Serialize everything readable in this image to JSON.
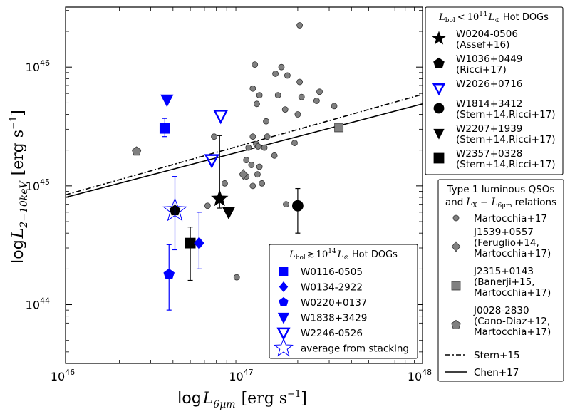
{
  "chart_data": {
    "type": "scatter",
    "x_scale": "log",
    "y_scale": "log",
    "xlim": [
      1e+46,
      1e+48
    ],
    "ylim": [
      3.2e+43,
      3.2e+46
    ],
    "x_ticks": [
      {
        "value": 1e+46,
        "label": "10",
        "exp": "46"
      },
      {
        "value": 1e+47,
        "label": "10",
        "exp": "47"
      },
      {
        "value": 1e+48,
        "label": "10",
        "exp": "48"
      }
    ],
    "y_ticks": [
      {
        "value": 1e+44,
        "label": "10",
        "exp": "44"
      },
      {
        "value": 1e+45,
        "label": "10",
        "exp": "45"
      },
      {
        "value": 1e+46,
        "label": "10",
        "exp": "46"
      }
    ],
    "xlabel": {
      "main": "log",
      "sym": "L",
      "sub": "6μm",
      "unit": "[erg s",
      "exp": "−1",
      "close": "]"
    },
    "ylabel": {
      "main": "log",
      "sym": "L",
      "sub": "2−10keV",
      "unit": "[erg s",
      "exp": "−1",
      "close": "]"
    },
    "lines": [
      {
        "name": "Stern+15",
        "style": "dashdot",
        "x": [
          1e+46,
          1e+48
        ],
        "y": [
          8.4e+44,
          5.9e+45
        ]
      },
      {
        "name": "Chen+17",
        "style": "solid",
        "x": [
          1e+46,
          1e+48
        ],
        "y": [
          8e+44,
          4.9e+45
        ]
      }
    ],
    "martocchia": {
      "name": "Martocchia+17",
      "color": "#808080",
      "points": [
        [
          2.05e+47,
          2.25e+46
        ],
        [
          1.15e+47,
          1.05e+46
        ],
        [
          1.62e+47,
          1e+46
        ],
        [
          1.5e+47,
          8.8e+45
        ],
        [
          1.75e+47,
          8.5e+45
        ],
        [
          2.05e+47,
          7.5e+45
        ],
        [
          2.65e+47,
          6.2e+45
        ],
        [
          1.12e+47,
          6.6e+45
        ],
        [
          1.22e+47,
          5.8e+45
        ],
        [
          1.55e+47,
          5.8e+45
        ],
        [
          2.1e+47,
          5.6e+45
        ],
        [
          2.55e+47,
          5.2e+45
        ],
        [
          1.18e+47,
          4.9e+45
        ],
        [
          3.2e+47,
          4.7e+45
        ],
        [
          1.7e+47,
          4.4e+45
        ],
        [
          2e+47,
          4e+45
        ],
        [
          1.33e+47,
          3.5e+45
        ],
        [
          6.8e+46,
          2.6e+45
        ],
        [
          1.12e+47,
          2.6e+45
        ],
        [
          1.35e+47,
          2.6e+45
        ],
        [
          1.17e+47,
          2.25e+45
        ],
        [
          1.06e+47,
          2.1e+45
        ],
        [
          1.2e+47,
          2.15e+45
        ],
        [
          1.3e+47,
          2.1e+45
        ],
        [
          1.92e+47,
          2.3e+45
        ],
        [
          1.48e+47,
          1.8e+45
        ],
        [
          1.03e+47,
          1.65e+45
        ],
        [
          1.1e+47,
          1.5e+45
        ],
        [
          1.22e+47,
          1.45e+45
        ],
        [
          1.19e+47,
          1.25e+45
        ],
        [
          1.03e+47,
          1.2e+45
        ],
        [
          1.26e+47,
          1.05e+45
        ],
        [
          7.8e+46,
          1.05e+45
        ],
        [
          1.12e+47,
          1e+45
        ],
        [
          6.25e+46,
          6.8e+44
        ],
        [
          1.72e+47,
          7e+44
        ],
        [
          9.1e+46,
          1.7e+44
        ]
      ]
    },
    "low_hot_dogs": [
      {
        "name": "W0204-0506",
        "ref": "(Assef+16)",
        "marker": "star",
        "color": "#000000",
        "filled": true,
        "x": 7.3e+46,
        "y": 7.8e+44,
        "err_low": 6.5e+44,
        "err_high": 2.65e+45
      },
      {
        "name": "W1036+0449",
        "ref": "(Ricci+17)",
        "marker": "pentagon",
        "color": "#000000",
        "filled": true,
        "x": 4.1e+46,
        "y": 6.2e+44
      },
      {
        "name": "W2026+0716",
        "ref": "",
        "marker": "tri_down",
        "color": "#0000ff",
        "filled": false,
        "x": 6.6e+46,
        "y": 1.65e+45
      },
      {
        "name": "W1814+3412",
        "ref": "(Stern+14,Ricci+17)",
        "marker": "circle",
        "color": "#000000",
        "filled": true,
        "x": 2e+47,
        "y": 6.8e+44,
        "err_low": 4e+44,
        "err_high": 9.5e+44
      },
      {
        "name": "W2207+1939",
        "ref": "(Stern+14,Ricci+17)",
        "marker": "tri_down",
        "color": "#000000",
        "filled": true,
        "x": 8.2e+46,
        "y": 6e+44
      },
      {
        "name": "W2357+0328",
        "ref": "(Stern+14,Ricci+17)",
        "marker": "square",
        "color": "#000000",
        "filled": true,
        "x": 5e+46,
        "y": 3.3e+44,
        "err_low": 1.6e+44,
        "err_high": 4.5e+44
      }
    ],
    "high_hot_dogs": [
      {
        "name": "W0116-0505",
        "marker": "square",
        "color": "#0000ff",
        "filled": true,
        "x": 3.6e+46,
        "y": 3.05e+45,
        "err_low": 2.6e+45,
        "err_high": 3.7e+45
      },
      {
        "name": "W0134-2922",
        "marker": "diamond",
        "color": "#0000ff",
        "filled": true,
        "x": 5.6e+46,
        "y": 3.3e+44,
        "err_low": 2e+44,
        "err_high": 6e+44
      },
      {
        "name": "W0220+0137",
        "marker": "pentagon",
        "color": "#0000ff",
        "filled": true,
        "x": 3.8e+46,
        "y": 1.8e+44,
        "err_low": 9e+43,
        "err_high": 3.2e+44
      },
      {
        "name": "W1838+3429",
        "marker": "tri_down",
        "color": "#0000ff",
        "filled": true,
        "x": 3.7e+46,
        "y": 5.3e+45
      },
      {
        "name": "W2246-0526",
        "marker": "tri_down",
        "color": "#0000ff",
        "filled": false,
        "x": 7.4e+46,
        "y": 3.9e+45
      },
      {
        "name": "average from stacking",
        "marker": "star",
        "color": "#0000ff",
        "filled": false,
        "x": 4.1e+46,
        "y": 6.2e+44,
        "err_low": 2.9e+44,
        "err_high": 1.2e+45
      }
    ],
    "type1_qsos": [
      {
        "name": "J1539+0557",
        "ref1": "(Feruglio+14,",
        "ref2": "Martocchia+17)",
        "marker": "diamond",
        "color": "#808080",
        "x": 9.9e+46,
        "y": 1.25e+45
      },
      {
        "name": "J2315+0143",
        "ref1": "(Banerji+15,",
        "ref2": "Martocchia+17)",
        "marker": "square",
        "color": "#808080",
        "x": 3.4e+47,
        "y": 3.1e+45
      },
      {
        "name": "J0028-2830",
        "ref1": "(Cano-Diaz+12,",
        "ref2": "Martocchia+17)",
        "marker": "pentagon",
        "color": "#808080",
        "x": 2.5e+46,
        "y": 1.95e+45
      }
    ],
    "legends": {
      "low_title": "Hot DOGs",
      "low_title_math": {
        "sym": "L",
        "sub": "bol",
        "rel": "<",
        "base": "10",
        "exp": "14",
        "unit": "L",
        "unit_sub": "⊙"
      },
      "high_title": "Hot DOGs",
      "high_title_math": {
        "sym": "L",
        "sub": "bol",
        "rel": "≳",
        "base": "10",
        "exp": "14",
        "unit": "L",
        "unit_sub": "⊙"
      },
      "qso_title1": "Type 1 luminous QSOs",
      "qso_title2_prefix": "and",
      "qso_title2_math": {
        "sym": "L",
        "sub": "X",
        "dash": " − ",
        "sym2": "L",
        "sub2": "6μm"
      },
      "qso_title2_suffix": "relations"
    }
  }
}
